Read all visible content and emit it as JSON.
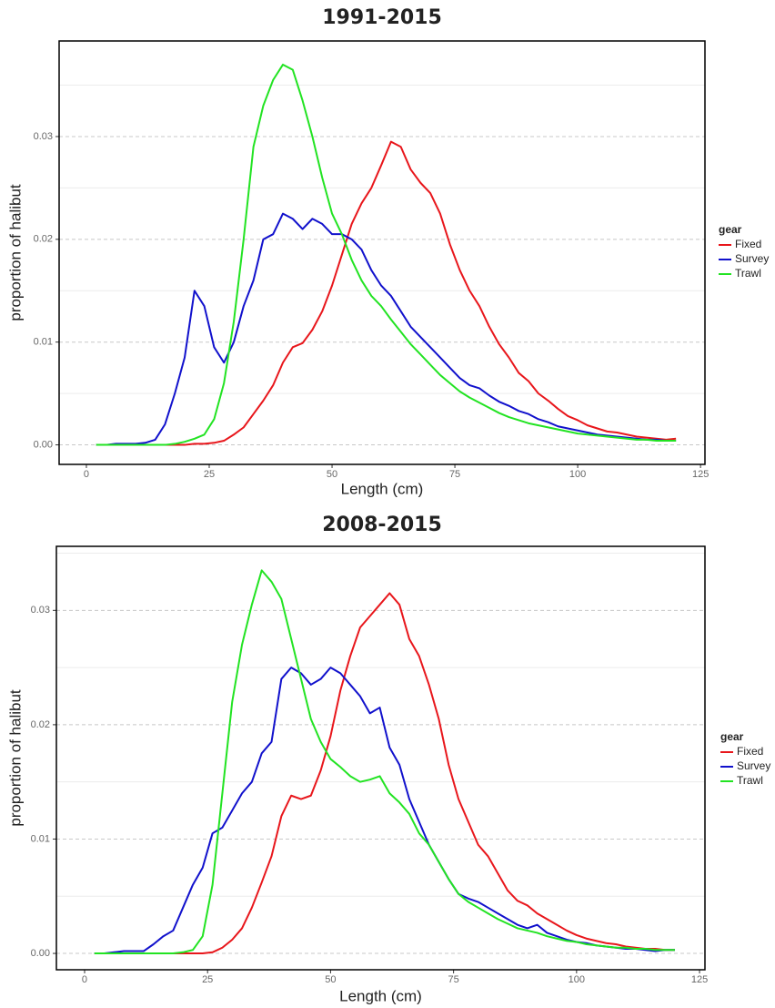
{
  "chart_data": [
    {
      "type": "line",
      "title": "1991-2015",
      "x_label": "Length (cm)",
      "y_label": "proportion of halibut",
      "legend_title": "gear",
      "legend_position": "right",
      "grid": true,
      "xlim": [
        -5.55,
        125.9
      ],
      "ylim": [
        -0.0019,
        0.0393
      ],
      "xticks": [
        0,
        25,
        50,
        75,
        100,
        125
      ],
      "yticks": [
        {
          "value": 0,
          "label": "0.00"
        },
        {
          "value": 0.01,
          "label": "0.01"
        },
        {
          "value": 0.02,
          "label": "0.02"
        },
        {
          "value": 0.03,
          "label": "0.03"
        }
      ],
      "y_minor_grid": [
        0.005,
        0.015,
        0.025,
        0.035
      ],
      "x": [
        2,
        4,
        6,
        8,
        10,
        12,
        14,
        16,
        18,
        20,
        22,
        24,
        26,
        28,
        30,
        32,
        34,
        36,
        38,
        40,
        42,
        44,
        46,
        48,
        50,
        52,
        54,
        56,
        58,
        60,
        62,
        64,
        66,
        68,
        70,
        72,
        74,
        76,
        78,
        80,
        82,
        84,
        86,
        88,
        90,
        92,
        94,
        96,
        98,
        100,
        102,
        104,
        106,
        108,
        110,
        112,
        114,
        116,
        118,
        120
      ],
      "series": [
        {
          "name": "Fixed",
          "color": "#e8161b",
          "values": [
            0,
            0,
            0,
            0,
            0,
            0,
            0,
            0,
            0,
            0,
            0.0001,
            0.0001,
            0.0002,
            0.0004,
            0.001,
            0.0017,
            0.003,
            0.0043,
            0.0058,
            0.008,
            0.0095,
            0.0099,
            0.0112,
            0.013,
            0.0155,
            0.0185,
            0.0215,
            0.0235,
            0.025,
            0.0272,
            0.0295,
            0.029,
            0.0268,
            0.0255,
            0.0245,
            0.0225,
            0.0195,
            0.017,
            0.015,
            0.0135,
            0.0115,
            0.0098,
            0.0085,
            0.007,
            0.0062,
            0.005,
            0.0043,
            0.0035,
            0.0028,
            0.0024,
            0.0019,
            0.0016,
            0.0013,
            0.0012,
            0.001,
            0.0008,
            0.0007,
            0.0006,
            0.0005,
            0.0006
          ]
        },
        {
          "name": "Survey",
          "color": "#1111cc",
          "values": [
            0,
            0,
            0.0001,
            0.0001,
            0.0001,
            0.0002,
            0.0005,
            0.002,
            0.005,
            0.0085,
            0.015,
            0.0135,
            0.0095,
            0.008,
            0.01,
            0.0135,
            0.016,
            0.02,
            0.0205,
            0.0225,
            0.022,
            0.021,
            0.022,
            0.0215,
            0.0205,
            0.0205,
            0.02,
            0.019,
            0.017,
            0.0155,
            0.0145,
            0.013,
            0.0115,
            0.0105,
            0.0095,
            0.0085,
            0.0075,
            0.0065,
            0.0058,
            0.0055,
            0.0048,
            0.0042,
            0.0038,
            0.0033,
            0.003,
            0.0025,
            0.0022,
            0.0018,
            0.0016,
            0.0014,
            0.0012,
            0.001,
            0.0009,
            0.0008,
            0.0007,
            0.0006,
            0.0005,
            0.0005,
            0.0004,
            0.0004
          ]
        },
        {
          "name": "Trawl",
          "color": "#22e322",
          "values": [
            0,
            0,
            0,
            0,
            0,
            0,
            0,
            0,
            0.0001,
            0.0003,
            0.0006,
            0.001,
            0.0025,
            0.006,
            0.012,
            0.02,
            0.029,
            0.033,
            0.0355,
            0.037,
            0.0365,
            0.0335,
            0.03,
            0.026,
            0.0225,
            0.0205,
            0.018,
            0.016,
            0.0145,
            0.0135,
            0.0122,
            0.011,
            0.0098,
            0.0088,
            0.0078,
            0.0068,
            0.006,
            0.0052,
            0.0046,
            0.0041,
            0.0036,
            0.0031,
            0.0027,
            0.0024,
            0.0021,
            0.0019,
            0.0017,
            0.0015,
            0.0013,
            0.0011,
            0.001,
            0.0009,
            0.0008,
            0.0007,
            0.0006,
            0.0005,
            0.0005,
            0.0004,
            0.0004,
            0.0004
          ]
        }
      ]
    },
    {
      "type": "line",
      "title": "2008-2015",
      "x_label": "Length (cm)",
      "y_label": "proportion of halibut",
      "legend_title": "gear",
      "legend_position": "right",
      "grid": true,
      "xlim": [
        -5.73,
        126.1
      ],
      "ylim": [
        -0.00143,
        0.0356
      ],
      "xticks": [
        0,
        25,
        50,
        75,
        100,
        125
      ],
      "yticks": [
        {
          "value": 0,
          "label": "0.00"
        },
        {
          "value": 0.01,
          "label": "0.01"
        },
        {
          "value": 0.02,
          "label": "0.02"
        },
        {
          "value": 0.03,
          "label": "0.03"
        }
      ],
      "y_minor_grid": [
        0.005,
        0.015,
        0.025,
        0.035
      ],
      "x": [
        2,
        4,
        6,
        8,
        10,
        12,
        14,
        16,
        18,
        20,
        22,
        24,
        26,
        28,
        30,
        32,
        34,
        36,
        38,
        40,
        42,
        44,
        46,
        48,
        50,
        52,
        54,
        56,
        58,
        60,
        62,
        64,
        66,
        68,
        70,
        72,
        74,
        76,
        78,
        80,
        82,
        84,
        86,
        88,
        90,
        92,
        94,
        96,
        98,
        100,
        102,
        104,
        106,
        108,
        110,
        112,
        114,
        116,
        118,
        120
      ],
      "series": [
        {
          "name": "Fixed",
          "color": "#e8161b",
          "values": [
            0,
            0,
            0,
            0,
            0,
            0,
            0,
            0,
            0,
            0,
            0,
            0,
            0.0001,
            0.0005,
            0.0012,
            0.0022,
            0.004,
            0.0062,
            0.0085,
            0.012,
            0.0138,
            0.0135,
            0.0138,
            0.016,
            0.019,
            0.023,
            0.026,
            0.0285,
            0.0295,
            0.0305,
            0.0315,
            0.0305,
            0.0275,
            0.026,
            0.0235,
            0.0205,
            0.0165,
            0.0135,
            0.0115,
            0.0095,
            0.0085,
            0.007,
            0.0055,
            0.0046,
            0.0042,
            0.0035,
            0.003,
            0.0025,
            0.002,
            0.0016,
            0.0013,
            0.0011,
            0.0009,
            0.0008,
            0.0006,
            0.0005,
            0.0004,
            0.0004,
            0.0003,
            0.0003
          ]
        },
        {
          "name": "Survey",
          "color": "#1111cc",
          "values": [
            0,
            0,
            0.0001,
            0.0002,
            0.0002,
            0.0002,
            0.0008,
            0.0015,
            0.002,
            0.004,
            0.006,
            0.0075,
            0.0105,
            0.011,
            0.0125,
            0.014,
            0.015,
            0.0175,
            0.0185,
            0.024,
            0.025,
            0.0245,
            0.0235,
            0.024,
            0.025,
            0.0245,
            0.0235,
            0.0225,
            0.021,
            0.0215,
            0.018,
            0.0165,
            0.0135,
            0.0115,
            0.0095,
            0.008,
            0.0065,
            0.0052,
            0.0048,
            0.0045,
            0.004,
            0.0035,
            0.003,
            0.0025,
            0.0022,
            0.0025,
            0.0018,
            0.0015,
            0.0012,
            0.001,
            0.0009,
            0.0007,
            0.0006,
            0.0005,
            0.0004,
            0.0004,
            0.0003,
            0.0002,
            0.0003,
            0.0003
          ]
        },
        {
          "name": "Trawl",
          "color": "#22e322",
          "values": [
            0,
            0,
            0,
            0,
            0,
            0,
            0,
            0,
            0,
            0.0001,
            0.0003,
            0.0015,
            0.006,
            0.014,
            0.022,
            0.027,
            0.0305,
            0.0335,
            0.0325,
            0.031,
            0.0275,
            0.024,
            0.0205,
            0.0185,
            0.017,
            0.0163,
            0.0155,
            0.015,
            0.0152,
            0.0155,
            0.014,
            0.0132,
            0.0122,
            0.0105,
            0.0095,
            0.008,
            0.0065,
            0.0052,
            0.0045,
            0.004,
            0.0035,
            0.003,
            0.0026,
            0.0022,
            0.002,
            0.0018,
            0.0015,
            0.0013,
            0.0011,
            0.001,
            0.0008,
            0.0007,
            0.0006,
            0.0005,
            0.0005,
            0.0004,
            0.0004,
            0.0003,
            0.0003,
            0.0003
          ]
        }
      ]
    }
  ]
}
